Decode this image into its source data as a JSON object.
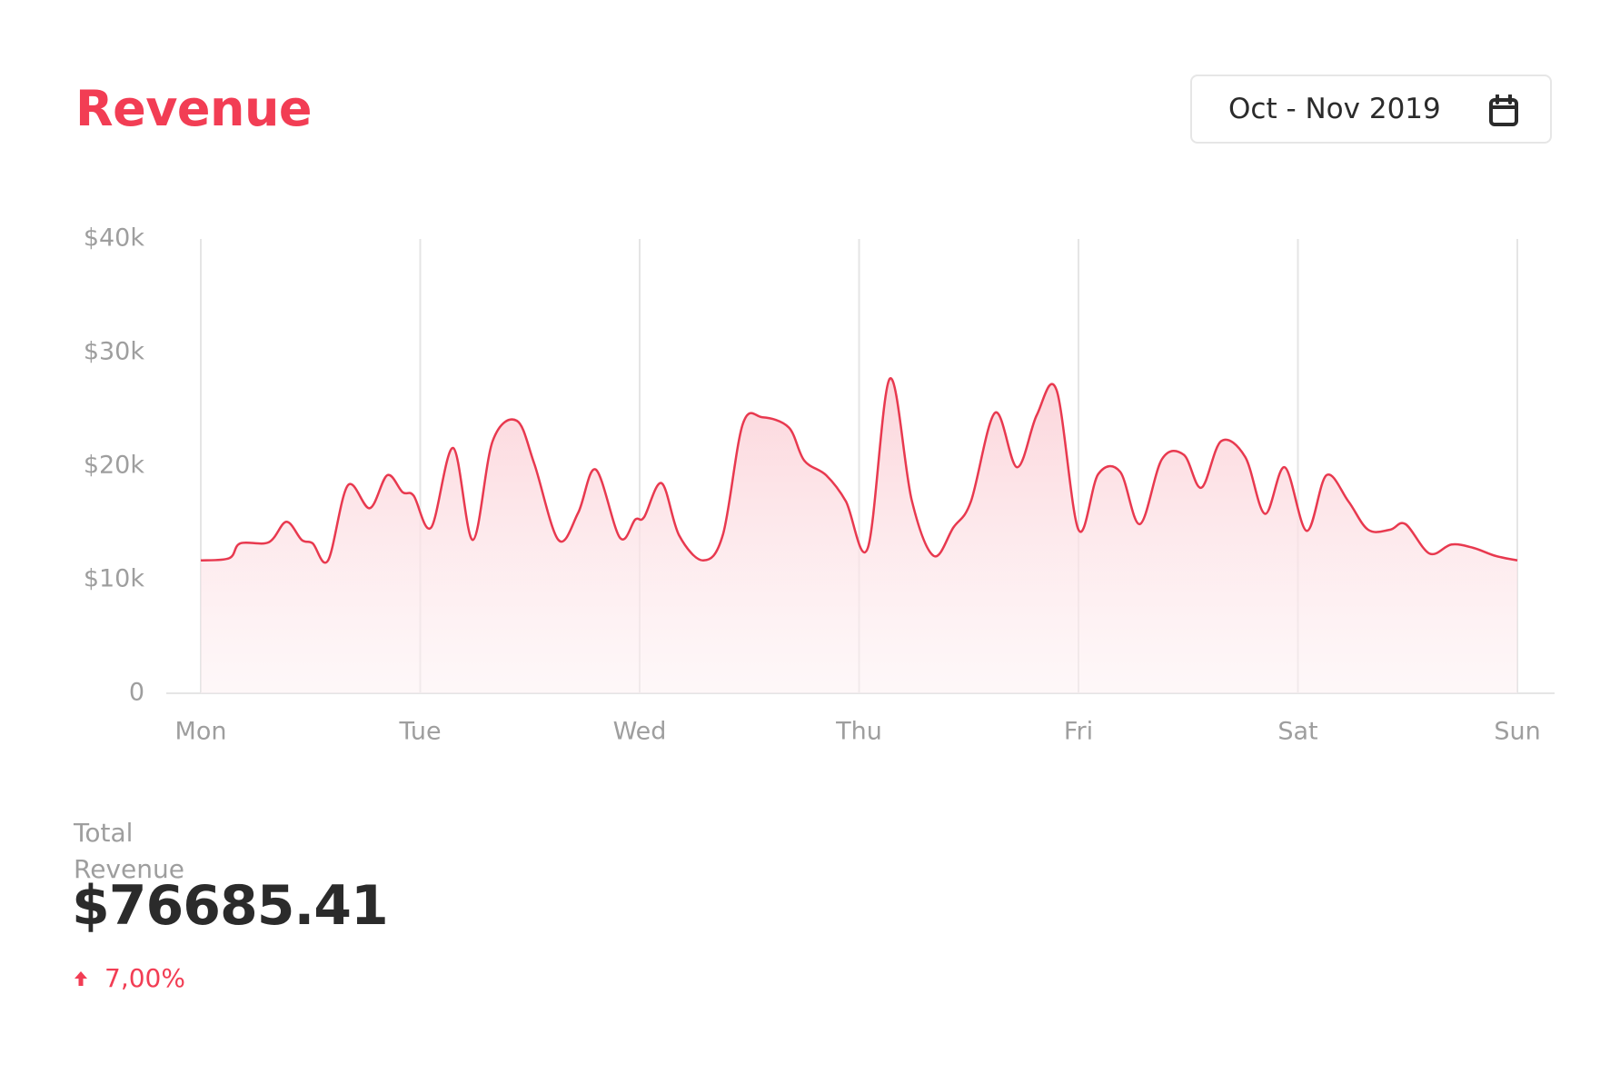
{
  "header": {
    "title": "Revenue",
    "date_range": "Oct - Nov 2019"
  },
  "chart_data": {
    "type": "area",
    "x": [
      0,
      0.13,
      0.18,
      0.31,
      0.39,
      0.46,
      0.51,
      0.58,
      0.67,
      0.77,
      0.85,
      0.92,
      0.97,
      1.05,
      1.15,
      1.24,
      1.33,
      1.44,
      1.52,
      1.63,
      1.72,
      1.8,
      1.91,
      1.98,
      2.02,
      2.1,
      2.18,
      2.29,
      2.38,
      2.47,
      2.56,
      2.68,
      2.75,
      2.85,
      2.94,
      3.04,
      3.14,
      3.24,
      3.34,
      3.43,
      3.51,
      3.62,
      3.72,
      3.81,
      3.9,
      4.0,
      4.09,
      4.19,
      4.28,
      4.38,
      4.48,
      4.56,
      4.65,
      4.76,
      4.85,
      4.94,
      5.04,
      5.13,
      5.23,
      5.32,
      5.42,
      5.49,
      5.6,
      5.7,
      5.8,
      5.9,
      6.0
    ],
    "values": [
      11700,
      11900,
      13200,
      13300,
      15100,
      13500,
      13200,
      11700,
      18300,
      16300,
      19200,
      17700,
      17400,
      14600,
      21600,
      13500,
      22200,
      24000,
      20200,
      13500,
      15900,
      19700,
      13700,
      15300,
      15500,
      18500,
      13900,
      11700,
      14000,
      23700,
      24300,
      23400,
      20500,
      19200,
      16900,
      12800,
      27700,
      17000,
      12100,
      14600,
      16900,
      24700,
      19900,
      24500,
      26700,
      14400,
      19300,
      19500,
      14900,
      20600,
      21000,
      18100,
      22200,
      20800,
      15800,
      19900,
      14300,
      19200,
      16900,
      14400,
      14400,
      14900,
      12300,
      13100,
      12800,
      12100,
      11700
    ],
    "color": "#e8394f",
    "xlim": [
      0,
      6
    ],
    "xticks": [
      {
        "value": 0,
        "label": "Mon"
      },
      {
        "value": 1,
        "label": "Tue"
      },
      {
        "value": 2,
        "label": "Wed"
      },
      {
        "value": 3,
        "label": "Thu"
      },
      {
        "value": 4,
        "label": "Fri"
      },
      {
        "value": 5,
        "label": "Sat"
      },
      {
        "value": 6,
        "label": "Sun"
      }
    ],
    "ylim": [
      0,
      40000
    ],
    "yticks": [
      0,
      {
        "value": 10000,
        "label": "$10k"
      },
      {
        "value": 20000,
        "label": "$20k"
      },
      {
        "value": 30000,
        "label": "$30k"
      },
      {
        "value": 40000,
        "label": "$40k"
      }
    ],
    "grid": "x"
  },
  "summary": {
    "label": "Total Revenue",
    "value": "$76685.41",
    "change": "7,00%"
  }
}
